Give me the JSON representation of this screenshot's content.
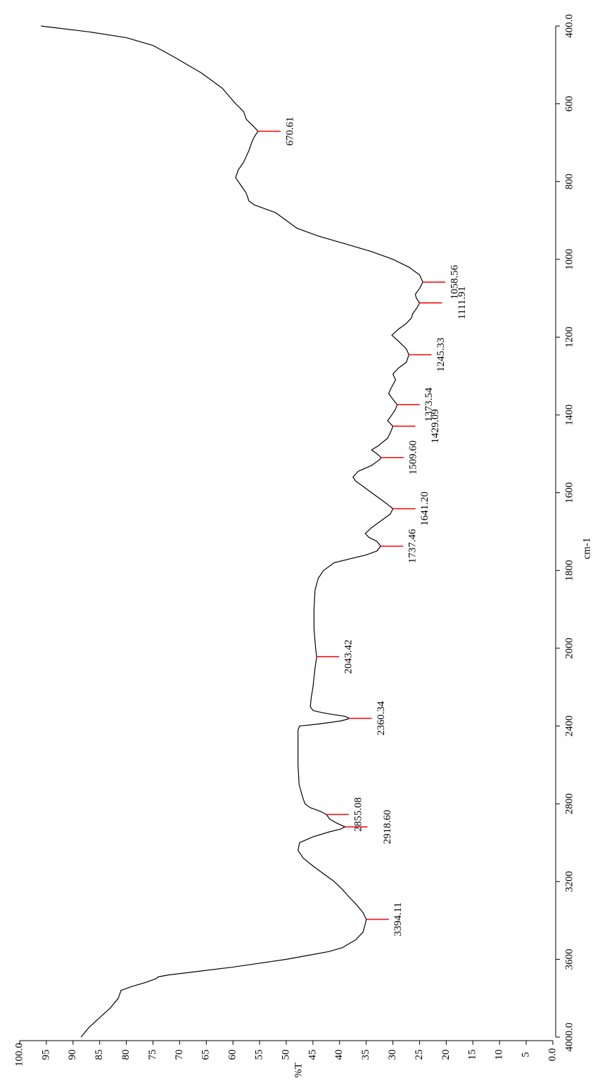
{
  "chart_data": {
    "type": "line",
    "x_label": "cm-1",
    "y_label": "%T",
    "color": "#000000",
    "peak_color": "#ff0000",
    "xlim": [
      4000,
      400
    ],
    "xticks": [
      {
        "value": 4000,
        "label": "4000.0"
      },
      3600,
      3200,
      2800,
      2400,
      2000,
      1800,
      1600,
      1400,
      1200,
      1000,
      800,
      600,
      {
        "value": 400,
        "label": "400.0"
      }
    ],
    "ylim": [
      0,
      100
    ],
    "yticks": [
      {
        "value": 100,
        "label": "100.0"
      },
      95,
      90,
      85,
      80,
      75,
      70,
      65,
      60,
      55,
      50,
      45,
      40,
      35,
      30,
      25,
      20,
      15,
      10,
      5,
      {
        "value": 0,
        "label": "0.0"
      }
    ],
    "x": [
      4000,
      3950,
      3900,
      3850,
      3800,
      3760,
      3740,
      3720,
      3700,
      3690,
      3680,
      3660,
      3640,
      3620,
      3600,
      3580,
      3560,
      3540,
      3500,
      3460,
      3420,
      3394.11,
      3360,
      3320,
      3280,
      3240,
      3200,
      3160,
      3120,
      3080,
      3040,
      3000,
      2970,
      2945,
      2930,
      2918.6,
      2900,
      2880,
      2855.08,
      2840,
      2820,
      2800,
      2760,
      2700,
      2600,
      2500,
      2420,
      2400,
      2390,
      2375,
      2365,
      2360.34,
      2350,
      2340,
      2330,
      2320,
      2300,
      2250,
      2200,
      2100,
      2043.42,
      2000,
      1950,
      1900,
      1850,
      1820,
      1800,
      1780,
      1770,
      1760,
      1750,
      1737.46,
      1725,
      1715,
      1705,
      1690,
      1670,
      1655,
      1641.2,
      1630,
      1610,
      1590,
      1570,
      1560,
      1545,
      1530,
      1515,
      1509.6,
      1500,
      1490,
      1480,
      1460,
      1440,
      1429.09,
      1415,
      1400,
      1385,
      1373.54,
      1360,
      1345,
      1330,
      1310,
      1295,
      1280,
      1265,
      1245.33,
      1230,
      1210,
      1195,
      1180,
      1165,
      1150,
      1140,
      1125,
      1111.91,
      1100,
      1090,
      1075,
      1058.56,
      1040,
      1020,
      1000,
      980,
      960,
      940,
      920,
      900,
      880,
      860,
      850,
      830,
      810,
      790,
      770,
      750,
      720,
      700,
      685,
      670.61,
      660,
      640,
      620,
      600,
      560,
      520,
      480,
      450,
      430,
      415,
      405,
      400
    ],
    "values": [
      88.5,
      87,
      85,
      83,
      81.5,
      81,
      79,
      76.5,
      74.5,
      74,
      72,
      66,
      60,
      55,
      50,
      46,
      42,
      39.5,
      37,
      35.6,
      35.2,
      35,
      35.6,
      36.8,
      38.2,
      39.5,
      41,
      43,
      45,
      46.8,
      47.8,
      47.5,
      45,
      42,
      39.8,
      39,
      40.5,
      41.8,
      42.5,
      43.5,
      45.5,
      46.5,
      47,
      47.6,
      47.8,
      47.8,
      47.8,
      47.5,
      44,
      40,
      38.5,
      38.2,
      39,
      41.5,
      43.5,
      45,
      45.5,
      45.3,
      45,
      44.6,
      44.3,
      44.5,
      44.8,
      44.8,
      44.6,
      44,
      43,
      41,
      38,
      35,
      33,
      32.3,
      33,
      34.5,
      35.2,
      34,
      32,
      30.5,
      30,
      31,
      33,
      35,
      37,
      37.5,
      36.5,
      34,
      32.5,
      32.2,
      33,
      34,
      32.8,
      31,
      30.3,
      30,
      31,
      30.2,
      29.5,
      29.2,
      30,
      30.8,
      30.3,
      29.5,
      30,
      29,
      27.5,
      27,
      27.5,
      29,
      30.2,
      29,
      27.5,
      26.5,
      26.3,
      25.5,
      25,
      25.6,
      25.8,
      25,
      24.4,
      25,
      27,
      30,
      34,
      39,
      44,
      48,
      50,
      52,
      56,
      57,
      57.5,
      58.5,
      59.5,
      59,
      58,
      57,
      56.5,
      56,
      55.3,
      56,
      57.5,
      58,
      59.5,
      62,
      66,
      71,
      75,
      80,
      87,
      93,
      96
    ],
    "peak_x": [
      670.61,
      1058.56,
      1111.91,
      1245.33,
      1373.54,
      1429.09,
      1509.6,
      1641.2,
      1737.46,
      2043.42,
      2360.34,
      2855.08,
      2918.6,
      3394.11
    ],
    "peak_y": [
      55.3,
      24.4,
      25,
      27,
      29.2,
      30,
      32.2,
      30,
      32.3,
      44.3,
      38.2,
      42.5,
      39,
      35
    ],
    "peak_labels": [
      "670.61",
      "1058.56",
      "1111.91",
      "1245.33",
      "1373.54",
      "1429.09",
      "1509.60",
      "1641.20",
      "1737.46",
      "2043.42",
      "2360.34",
      "2855.08",
      "2918.60",
      "3394.11"
    ]
  }
}
